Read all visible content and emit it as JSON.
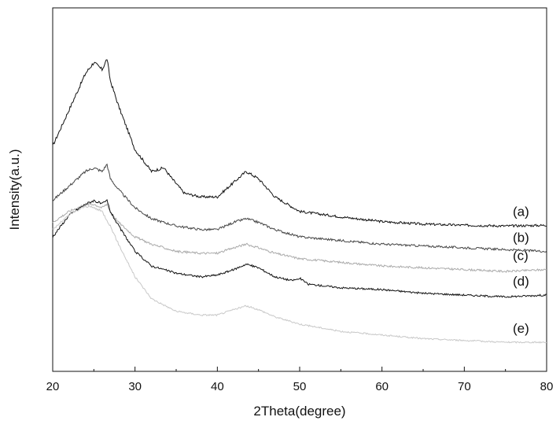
{
  "chart_data": {
    "type": "line",
    "title": "",
    "xlabel": "2Theta(degree)",
    "ylabel": "Intensity(a.u.)",
    "xlim": [
      20,
      80
    ],
    "x_ticks": [
      20,
      30,
      40,
      50,
      60,
      70,
      80
    ],
    "y_ticks_shown": false,
    "grid": false,
    "y_scale": "arbitrary units (curves vertically offset)",
    "series": [
      {
        "name": "(a)",
        "color": "#111111",
        "points": [
          [
            20,
            0.62
          ],
          [
            22,
            0.72
          ],
          [
            24,
            0.82
          ],
          [
            25,
            0.85
          ],
          [
            26,
            0.83
          ],
          [
            26.6,
            0.86
          ],
          [
            27,
            0.8
          ],
          [
            28,
            0.73
          ],
          [
            30,
            0.61
          ],
          [
            32,
            0.55
          ],
          [
            33.5,
            0.56
          ],
          [
            34.5,
            0.53
          ],
          [
            36,
            0.49
          ],
          [
            38,
            0.48
          ],
          [
            40,
            0.48
          ],
          [
            42,
            0.52
          ],
          [
            43.5,
            0.55
          ],
          [
            45,
            0.53
          ],
          [
            47,
            0.48
          ],
          [
            50,
            0.44
          ],
          [
            55,
            0.425
          ],
          [
            60,
            0.412
          ],
          [
            65,
            0.405
          ],
          [
            70,
            0.402
          ],
          [
            75,
            0.4
          ],
          [
            80,
            0.402
          ]
        ]
      },
      {
        "name": "(b)",
        "color": "#444444",
        "points": [
          [
            20,
            0.47
          ],
          [
            22,
            0.51
          ],
          [
            24,
            0.55
          ],
          [
            25,
            0.56
          ],
          [
            26,
            0.55
          ],
          [
            26.6,
            0.57
          ],
          [
            27,
            0.53
          ],
          [
            28,
            0.5
          ],
          [
            30,
            0.45
          ],
          [
            32,
            0.42
          ],
          [
            35,
            0.4
          ],
          [
            38,
            0.39
          ],
          [
            40,
            0.39
          ],
          [
            42,
            0.41
          ],
          [
            43.5,
            0.42
          ],
          [
            45,
            0.41
          ],
          [
            47,
            0.39
          ],
          [
            50,
            0.37
          ],
          [
            55,
            0.36
          ],
          [
            60,
            0.35
          ],
          [
            65,
            0.345
          ],
          [
            70,
            0.34
          ],
          [
            75,
            0.335
          ],
          [
            80,
            0.33
          ]
        ]
      },
      {
        "name": "(c)",
        "color": "#aaaaaa",
        "points": [
          [
            20,
            0.41
          ],
          [
            22,
            0.44
          ],
          [
            24,
            0.46
          ],
          [
            25,
            0.46
          ],
          [
            26,
            0.45
          ],
          [
            26.6,
            0.46
          ],
          [
            27,
            0.44
          ],
          [
            28,
            0.41
          ],
          [
            30,
            0.37
          ],
          [
            32,
            0.35
          ],
          [
            35,
            0.33
          ],
          [
            38,
            0.325
          ],
          [
            40,
            0.325
          ],
          [
            42,
            0.34
          ],
          [
            43.5,
            0.35
          ],
          [
            45,
            0.34
          ],
          [
            47,
            0.325
          ],
          [
            50,
            0.31
          ],
          [
            55,
            0.3
          ],
          [
            60,
            0.29
          ],
          [
            65,
            0.285
          ],
          [
            70,
            0.28
          ],
          [
            75,
            0.275
          ],
          [
            80,
            0.28
          ]
        ]
      },
      {
        "name": "(d)",
        "color": "#111111",
        "points": [
          [
            20,
            0.37
          ],
          [
            22,
            0.43
          ],
          [
            24,
            0.46
          ],
          [
            25,
            0.47
          ],
          [
            26,
            0.46
          ],
          [
            26.6,
            0.47
          ],
          [
            27,
            0.44
          ],
          [
            28,
            0.4
          ],
          [
            30,
            0.33
          ],
          [
            32,
            0.29
          ],
          [
            35,
            0.27
          ],
          [
            38,
            0.26
          ],
          [
            40,
            0.265
          ],
          [
            42,
            0.28
          ],
          [
            43.5,
            0.295
          ],
          [
            45,
            0.285
          ],
          [
            47,
            0.26
          ],
          [
            49,
            0.25
          ],
          [
            50.1,
            0.255
          ],
          [
            51,
            0.24
          ],
          [
            55,
            0.23
          ],
          [
            60,
            0.225
          ],
          [
            65,
            0.215
          ],
          [
            70,
            0.21
          ],
          [
            75,
            0.205
          ],
          [
            80,
            0.21
          ]
        ]
      },
      {
        "name": "(e)",
        "color": "#c8c8c8",
        "points": [
          [
            20,
            0.39
          ],
          [
            22,
            0.43
          ],
          [
            24,
            0.455
          ],
          [
            25,
            0.45
          ],
          [
            26,
            0.44
          ],
          [
            27,
            0.4
          ],
          [
            28,
            0.35
          ],
          [
            30,
            0.26
          ],
          [
            32,
            0.2
          ],
          [
            35,
            0.165
          ],
          [
            38,
            0.155
          ],
          [
            40,
            0.155
          ],
          [
            42,
            0.17
          ],
          [
            43.5,
            0.18
          ],
          [
            45,
            0.17
          ],
          [
            47,
            0.15
          ],
          [
            50,
            0.13
          ],
          [
            55,
            0.11
          ],
          [
            60,
            0.1
          ],
          [
            65,
            0.09
          ],
          [
            70,
            0.085
          ],
          [
            75,
            0.08
          ],
          [
            80,
            0.08
          ]
        ]
      }
    ]
  }
}
